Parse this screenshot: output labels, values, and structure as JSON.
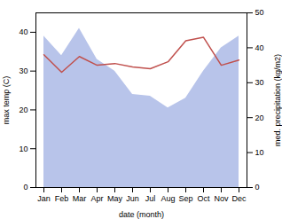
{
  "chart_data": {
    "type": "combo",
    "xlabel": "date (month)",
    "ylabel": "max temp (C)",
    "y2label": "med. precipitation (kg/m2)",
    "categories": [
      "Jan",
      "Feb",
      "Mar",
      "Apr",
      "May",
      "Jun",
      "Jul",
      "Aug",
      "Sep",
      "Oct",
      "Nov",
      "Dec"
    ],
    "series": [
      {
        "type": "area",
        "color": "#b8c4ea",
        "values": [
          39.0,
          34.0,
          41.0,
          33.0,
          30.0,
          24.0,
          23.5,
          20.5,
          23.0,
          30.0,
          36.0,
          39.0
        ]
      },
      {
        "type": "line",
        "color": "#c0504d",
        "axis": "y2",
        "values": [
          38.0,
          33.0,
          37.5,
          35.0,
          35.5,
          34.5,
          34.0,
          36.0,
          42.0,
          43.0,
          35.0,
          36.5
        ]
      }
    ],
    "ylim": [
      0,
      45
    ],
    "yticks": [
      0,
      10,
      20,
      30,
      40
    ],
    "y2lim": [
      0,
      50
    ],
    "y2ticks": [
      0,
      10,
      20,
      30,
      40,
      50
    ],
    "grid": false
  }
}
